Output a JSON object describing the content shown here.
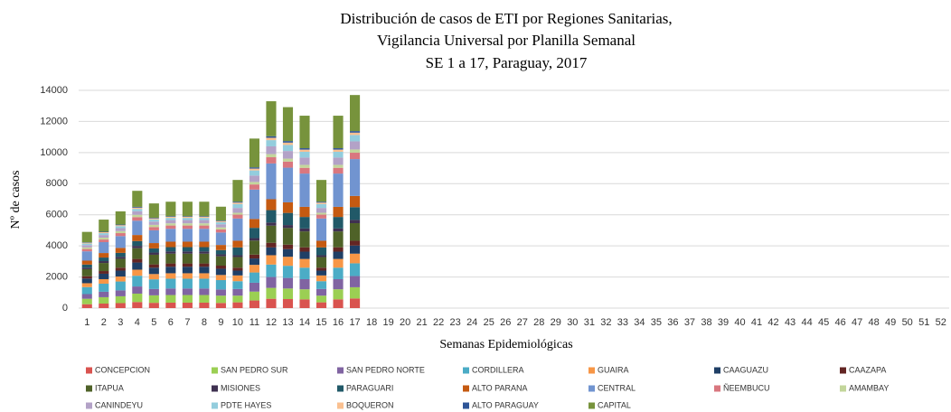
{
  "chart_data": {
    "type": "stacked-bar",
    "title": [
      "Distribución  de casos de ETI por Regiones Sanitarias,",
      "Vigilancia  Universal por Planilla Semanal",
      "SE 1 a 17, Paraguay,  2017"
    ],
    "x_label": "Semanas Epidemiológicas",
    "y_label": "Nº de casos",
    "categories": [
      1,
      2,
      3,
      4,
      5,
      6,
      7,
      8,
      9,
      10,
      11,
      12,
      13,
      14,
      15,
      16,
      17,
      18,
      19,
      20,
      21,
      22,
      23,
      24,
      25,
      26,
      27,
      28,
      29,
      30,
      31,
      32,
      33,
      34,
      35,
      36,
      37,
      38,
      39,
      40,
      41,
      42,
      43,
      44,
      45,
      46,
      47,
      48,
      49,
      50,
      51,
      52
    ],
    "ylim": [
      0,
      14000
    ],
    "yticks": [
      0,
      2000,
      4000,
      6000,
      8000,
      10000,
      12000,
      14000
    ],
    "grid": true,
    "series": [
      {
        "name": "CONCEPCION",
        "color": "#d9534f",
        "values": [
          250,
          290,
          320,
          390,
          340,
          350,
          350,
          350,
          330,
          370,
          490,
          600,
          580,
          560,
          370,
          560,
          620,
          null,
          null,
          null,
          null,
          null,
          null,
          null,
          null,
          null,
          null,
          null,
          null,
          null,
          null,
          null,
          null,
          null,
          null,
          null,
          null,
          null,
          null,
          null,
          null,
          null,
          null,
          null,
          null,
          null,
          null,
          null,
          null,
          null,
          null,
          null
        ]
      },
      {
        "name": "SAN PEDRO SUR",
        "color": "#9bcf53",
        "values": [
          350,
          410,
          440,
          540,
          480,
          490,
          490,
          490,
          470,
          430,
          570,
          700,
          680,
          650,
          430,
          650,
          720,
          null,
          null,
          null,
          null,
          null,
          null,
          null,
          null,
          null,
          null,
          null,
          null,
          null,
          null,
          null,
          null,
          null,
          null,
          null,
          null,
          null,
          null,
          null,
          null,
          null,
          null,
          null,
          null,
          null,
          null,
          null,
          null,
          null,
          null,
          null
        ]
      },
      {
        "name": "SAN PEDRO NORTE",
        "color": "#8064a2",
        "values": [
          300,
          350,
          380,
          460,
          410,
          420,
          420,
          420,
          400,
          430,
          570,
          700,
          680,
          650,
          430,
          650,
          720,
          null,
          null,
          null,
          null,
          null,
          null,
          null,
          null,
          null,
          null,
          null,
          null,
          null,
          null,
          null,
          null,
          null,
          null,
          null,
          null,
          null,
          null,
          null,
          null,
          null,
          null,
          null,
          null,
          null,
          null,
          null,
          null,
          null,
          null,
          null
        ]
      },
      {
        "name": "CORDILLERA",
        "color": "#4bacc6",
        "values": [
          450,
          520,
          570,
          690,
          620,
          630,
          630,
          630,
          600,
          500,
          660,
          800,
          780,
          740,
          500,
          740,
          820,
          null,
          null,
          null,
          null,
          null,
          null,
          null,
          null,
          null,
          null,
          null,
          null,
          null,
          null,
          null,
          null,
          null,
          null,
          null,
          null,
          null,
          null,
          null,
          null,
          null,
          null,
          null,
          null,
          null,
          null,
          null,
          null,
          null,
          null,
          null
        ]
      },
      {
        "name": "GUAIRA",
        "color": "#f79646",
        "values": [
          250,
          290,
          320,
          390,
          340,
          350,
          350,
          350,
          330,
          370,
          490,
          600,
          580,
          560,
          370,
          560,
          620,
          null,
          null,
          null,
          null,
          null,
          null,
          null,
          null,
          null,
          null,
          null,
          null,
          null,
          null,
          null,
          null,
          null,
          null,
          null,
          null,
          null,
          null,
          null,
          null,
          null,
          null,
          null,
          null,
          null,
          null,
          null,
          null,
          null,
          null,
          null
        ]
      },
      {
        "name": "CAAGUAZU",
        "color": "#1f3f66",
        "values": [
          300,
          350,
          380,
          460,
          410,
          420,
          420,
          420,
          400,
          310,
          410,
          500,
          490,
          470,
          310,
          470,
          520,
          null,
          null,
          null,
          null,
          null,
          null,
          null,
          null,
          null,
          null,
          null,
          null,
          null,
          null,
          null,
          null,
          null,
          null,
          null,
          null,
          null,
          null,
          null,
          null,
          null,
          null,
          null,
          null,
          null,
          null,
          null,
          null,
          null,
          null,
          null
        ]
      },
      {
        "name": "CAAZAPA",
        "color": "#632523",
        "values": [
          150,
          170,
          190,
          230,
          210,
          210,
          210,
          210,
          200,
          190,
          250,
          300,
          290,
          280,
          190,
          280,
          310,
          null,
          null,
          null,
          null,
          null,
          null,
          null,
          null,
          null,
          null,
          null,
          null,
          null,
          null,
          null,
          null,
          null,
          null,
          null,
          null,
          null,
          null,
          null,
          null,
          null,
          null,
          null,
          null,
          null,
          null,
          null,
          null,
          null,
          null,
          null
        ]
      },
      {
        "name": "ITAPUA",
        "color": "#4f6228",
        "values": [
          450,
          520,
          570,
          690,
          620,
          630,
          630,
          630,
          600,
          680,
          900,
          1100,
          1070,
          1020,
          680,
          1020,
          1130,
          null,
          null,
          null,
          null,
          null,
          null,
          null,
          null,
          null,
          null,
          null,
          null,
          null,
          null,
          null,
          null,
          null,
          null,
          null,
          null,
          null,
          null,
          null,
          null,
          null,
          null,
          null,
          null,
          null,
          null,
          null,
          null,
          null,
          null,
          null
        ]
      },
      {
        "name": "MISIONES",
        "color": "#3f3151",
        "values": [
          100,
          120,
          130,
          150,
          140,
          140,
          140,
          140,
          130,
          120,
          160,
          200,
          190,
          190,
          120,
          190,
          210,
          null,
          null,
          null,
          null,
          null,
          null,
          null,
          null,
          null,
          null,
          null,
          null,
          null,
          null,
          null,
          null,
          null,
          null,
          null,
          null,
          null,
          null,
          null,
          null,
          null,
          null,
          null,
          null,
          null,
          null,
          null,
          null,
          null,
          null,
          null
        ]
      },
      {
        "name": "PARAGUARI",
        "color": "#215968",
        "values": [
          200,
          230,
          250,
          310,
          270,
          280,
          280,
          280,
          270,
          500,
          660,
          800,
          780,
          740,
          500,
          740,
          820,
          null,
          null,
          null,
          null,
          null,
          null,
          null,
          null,
          null,
          null,
          null,
          null,
          null,
          null,
          null,
          null,
          null,
          null,
          null,
          null,
          null,
          null,
          null,
          null,
          null,
          null,
          null,
          null,
          null,
          null,
          null,
          null,
          null,
          null,
          null
        ]
      },
      {
        "name": "ALTO PARANA",
        "color": "#c55a11",
        "values": [
          250,
          290,
          320,
          390,
          340,
          350,
          350,
          350,
          330,
          430,
          570,
          700,
          680,
          650,
          430,
          650,
          720,
          null,
          null,
          null,
          null,
          null,
          null,
          null,
          null,
          null,
          null,
          null,
          null,
          null,
          null,
          null,
          null,
          null,
          null,
          null,
          null,
          null,
          null,
          null,
          null,
          null,
          null,
          null,
          null,
          null,
          null,
          null,
          null,
          null,
          null,
          null
        ]
      },
      {
        "name": "CENTRAL",
        "color": "#7194d0",
        "values": [
          600,
          700,
          760,
          920,
          820,
          830,
          830,
          830,
          800,
          1430,
          1890,
          2300,
          2230,
          2140,
          1430,
          2140,
          2370,
          null,
          null,
          null,
          null,
          null,
          null,
          null,
          null,
          null,
          null,
          null,
          null,
          null,
          null,
          null,
          null,
          null,
          null,
          null,
          null,
          null,
          null,
          null,
          null,
          null,
          null,
          null,
          null,
          null,
          null,
          null,
          null,
          null,
          null,
          null
        ]
      },
      {
        "name": "ÑEEMBUCU",
        "color": "#d9777f",
        "values": [
          150,
          170,
          190,
          230,
          210,
          210,
          210,
          210,
          200,
          250,
          330,
          400,
          390,
          370,
          250,
          370,
          410,
          null,
          null,
          null,
          null,
          null,
          null,
          null,
          null,
          null,
          null,
          null,
          null,
          null,
          null,
          null,
          null,
          null,
          null,
          null,
          null,
          null,
          null,
          null,
          null,
          null,
          null,
          null,
          null,
          null,
          null,
          null,
          null,
          null,
          null,
          null
        ]
      },
      {
        "name": "AMAMBAY",
        "color": "#c3d69b",
        "values": [
          100,
          120,
          130,
          150,
          140,
          140,
          140,
          140,
          130,
          120,
          160,
          200,
          190,
          190,
          120,
          190,
          210,
          null,
          null,
          null,
          null,
          null,
          null,
          null,
          null,
          null,
          null,
          null,
          null,
          null,
          null,
          null,
          null,
          null,
          null,
          null,
          null,
          null,
          null,
          null,
          null,
          null,
          null,
          null,
          null,
          null,
          null,
          null,
          null,
          null,
          null,
          null
        ]
      },
      {
        "name": "CANINDEYU",
        "color": "#b3a2c7",
        "values": [
          150,
          170,
          190,
          230,
          210,
          210,
          210,
          210,
          200,
          310,
          410,
          500,
          490,
          470,
          310,
          470,
          520,
          null,
          null,
          null,
          null,
          null,
          null,
          null,
          null,
          null,
          null,
          null,
          null,
          null,
          null,
          null,
          null,
          null,
          null,
          null,
          null,
          null,
          null,
          null,
          null,
          null,
          null,
          null,
          null,
          null,
          null,
          null,
          null,
          null,
          null,
          null
        ]
      },
      {
        "name": "PDTE HAYES",
        "color": "#93cddd",
        "values": [
          100,
          120,
          130,
          150,
          140,
          140,
          140,
          140,
          130,
          250,
          330,
          400,
          390,
          370,
          250,
          370,
          410,
          null,
          null,
          null,
          null,
          null,
          null,
          null,
          null,
          null,
          null,
          null,
          null,
          null,
          null,
          null,
          null,
          null,
          null,
          null,
          null,
          null,
          null,
          null,
          null,
          null,
          null,
          null,
          null,
          null,
          null,
          null,
          null,
          null,
          null,
          null
        ]
      },
      {
        "name": "BOQUERON",
        "color": "#fac090",
        "values": [
          50,
          60,
          60,
          80,
          70,
          70,
          70,
          70,
          70,
          90,
          120,
          150,
          150,
          140,
          90,
          140,
          150,
          null,
          null,
          null,
          null,
          null,
          null,
          null,
          null,
          null,
          null,
          null,
          null,
          null,
          null,
          null,
          null,
          null,
          null,
          null,
          null,
          null,
          null,
          null,
          null,
          null,
          null,
          null,
          null,
          null,
          null,
          null,
          null,
          null,
          null,
          null
        ]
      },
      {
        "name": "ALTO PARAGUAY",
        "color": "#2e5597",
        "values": [
          30,
          30,
          40,
          50,
          40,
          40,
          40,
          40,
          40,
          60,
          80,
          100,
          100,
          90,
          60,
          90,
          100,
          null,
          null,
          null,
          null,
          null,
          null,
          null,
          null,
          null,
          null,
          null,
          null,
          null,
          null,
          null,
          null,
          null,
          null,
          null,
          null,
          null,
          null,
          null,
          null,
          null,
          null,
          null,
          null,
          null,
          null,
          null,
          null,
          null,
          null,
          null
        ]
      },
      {
        "name": "CAPITAL",
        "color": "#77933c",
        "values": [
          670,
          780,
          850,
          1030,
          920,
          930,
          930,
          930,
          890,
          1400,
          1850,
          2250,
          2180,
          2090,
          1400,
          2090,
          2320,
          null,
          null,
          null,
          null,
          null,
          null,
          null,
          null,
          null,
          null,
          null,
          null,
          null,
          null,
          null,
          null,
          null,
          null,
          null,
          null,
          null,
          null,
          null,
          null,
          null,
          null,
          null,
          null,
          null,
          null,
          null,
          null,
          null,
          null,
          null
        ]
      }
    ]
  }
}
